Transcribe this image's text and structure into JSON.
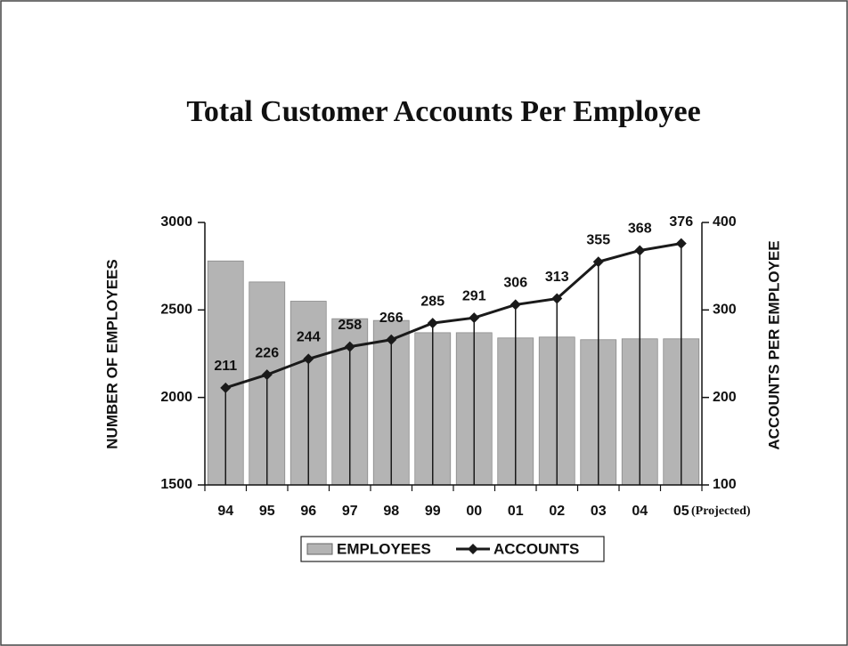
{
  "chart_data": {
    "type": "bar-line",
    "title": "Total Customer Accounts Per Employee",
    "categories": [
      "94",
      "95",
      "96",
      "97",
      "98",
      "99",
      "00",
      "01",
      "02",
      "03",
      "04",
      "05"
    ],
    "annotation": "(Projected)",
    "series": [
      {
        "name": "EMPLOYEES",
        "type": "bar",
        "color": "#b4b4b4",
        "values": [
          2780,
          2660,
          2550,
          2450,
          2440,
          2370,
          2370,
          2340,
          2345,
          2330,
          2335,
          2335
        ]
      },
      {
        "name": "ACCOUNTS",
        "type": "line",
        "axis": "y2",
        "color": "#1a1a1a",
        "values": [
          211,
          226,
          244,
          258,
          266,
          285,
          291,
          306,
          313,
          355,
          368,
          376
        ]
      }
    ],
    "ylabel": "NUMBER OF EMPLOYEES",
    "y2label": "ACCOUNTS PER EMPLOYEE",
    "ylim": [
      1500,
      3000
    ],
    "yticks": [
      1500,
      2000,
      2500,
      3000
    ],
    "y2lim": [
      100,
      400
    ],
    "y2ticks": [
      100,
      200,
      300,
      400
    ],
    "drop_lines": true,
    "legend": "bottom"
  }
}
